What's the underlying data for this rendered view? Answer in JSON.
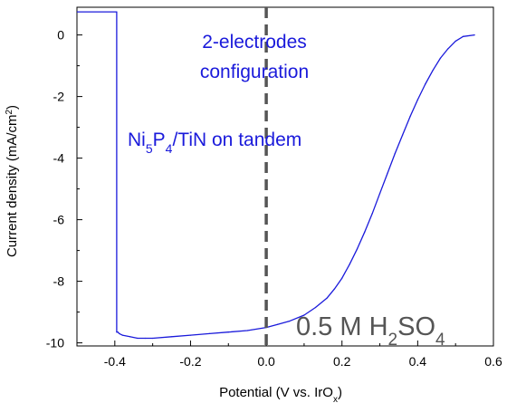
{
  "chart_data": {
    "type": "line",
    "title": "",
    "xlabel": "Potential (V vs. IrO",
    "xlabel_sub": "x",
    "xlabel_end": ")",
    "ylabel": "Current density (mA/cm",
    "ylabel_sup": "2",
    "ylabel_end": ")",
    "xlim": [
      -0.5,
      0.6
    ],
    "ylim": [
      -10.1,
      0.9
    ],
    "xticks": [
      -0.4,
      -0.2,
      0.0,
      0.2,
      0.4,
      0.6
    ],
    "xtick_labels": [
      "-0.4",
      "-0.2",
      "0.0",
      "0.2",
      "0.4",
      "0.6"
    ],
    "yticks": [
      0,
      -2,
      -4,
      -6,
      -8,
      -10
    ],
    "ytick_labels": [
      "0",
      "-2",
      "-4",
      "-6",
      "-8",
      "-10"
    ],
    "grid": false,
    "series": [
      {
        "color": "#1a1adb",
        "x": [
          -0.5,
          -0.395,
          -0.395,
          -0.392,
          -0.388,
          -0.38,
          -0.36,
          -0.34,
          -0.32,
          -0.3,
          -0.25,
          -0.2,
          -0.15,
          -0.1,
          -0.05,
          0.0,
          0.03,
          0.06,
          0.1,
          0.13,
          0.16,
          0.18,
          0.2,
          0.22,
          0.24,
          0.26,
          0.28,
          0.3,
          0.32,
          0.34,
          0.36,
          0.38,
          0.4,
          0.42,
          0.44,
          0.46,
          0.48,
          0.5,
          0.52,
          0.55
        ],
        "y": [
          0.75,
          0.75,
          -9.65,
          -9.65,
          -9.7,
          -9.75,
          -9.8,
          -9.85,
          -9.85,
          -9.85,
          -9.8,
          -9.75,
          -9.7,
          -9.65,
          -9.6,
          -9.5,
          -9.4,
          -9.3,
          -9.1,
          -8.85,
          -8.55,
          -8.25,
          -7.9,
          -7.45,
          -6.95,
          -6.4,
          -5.8,
          -5.15,
          -4.5,
          -3.85,
          -3.25,
          -2.65,
          -2.1,
          -1.6,
          -1.15,
          -0.75,
          -0.45,
          -0.2,
          -0.05,
          0.0
        ]
      }
    ],
    "vline": {
      "x": 0.0,
      "style": "dashed",
      "color": "#555555"
    },
    "annotations": {
      "config_line1": "2-electrodes",
      "config_line2": "configuration",
      "sample": [
        "Ni",
        "5",
        "P",
        "4",
        "/TiN on tandem"
      ],
      "electrolyte": [
        "0.5 M H",
        "2",
        "SO",
        "4"
      ],
      "blue": "#1a1adb",
      "gray": "#555555"
    }
  }
}
